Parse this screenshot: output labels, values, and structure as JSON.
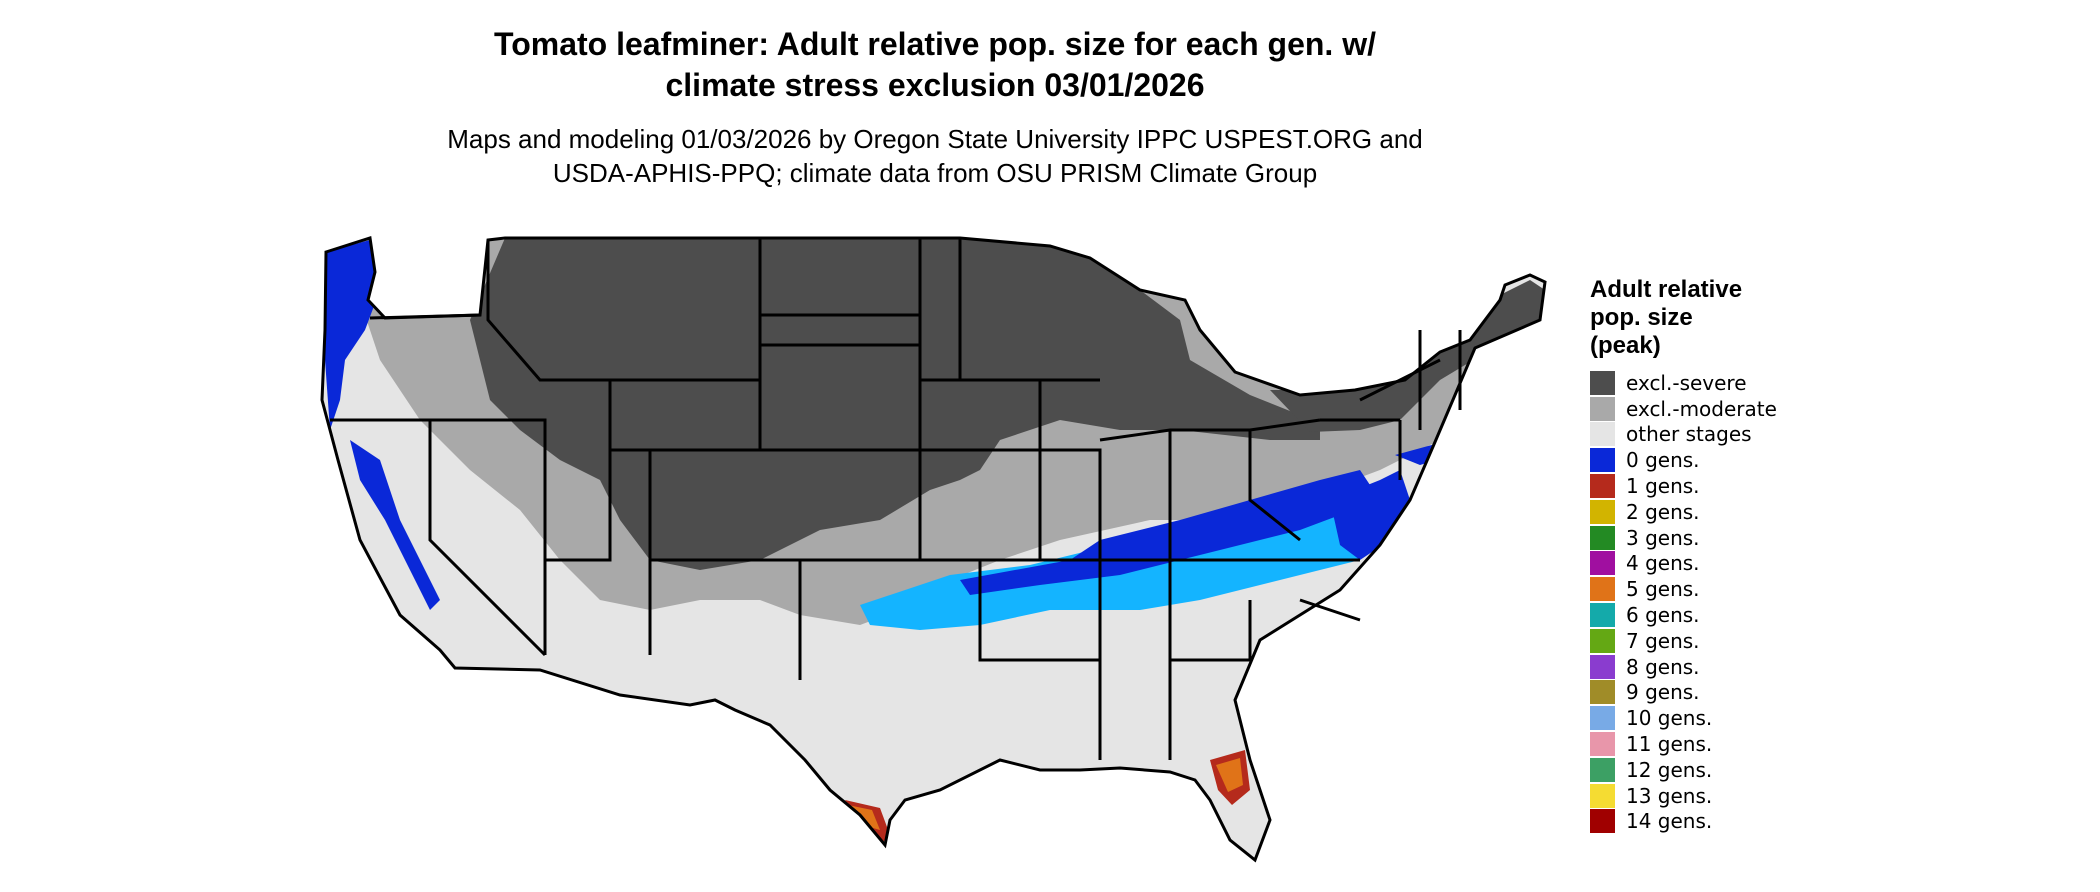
{
  "header": {
    "title_line1": "Tomato leafminer: Adult relative pop. size for each gen. w/",
    "title_line2": "climate stress exclusion 03/01/2026",
    "subtitle_line1": "Maps and modeling 01/03/2026 by Oregon State University IPPC USPEST.ORG and",
    "subtitle_line2": "USDA-APHIS-PPQ; climate data from OSU PRISM Climate Group"
  },
  "legend": {
    "title_line1": "Adult relative",
    "title_line2": "pop. size",
    "title_line3": "(peak)",
    "items": [
      {
        "label": "excl.-severe",
        "color": "#4d4d4d"
      },
      {
        "label": "excl.-moderate",
        "color": "#a9a9a9"
      },
      {
        "label": "other stages",
        "color": "#e5e5e5"
      },
      {
        "label": "0 gens.",
        "color": "#0a28d8"
      },
      {
        "label": "1 gens.",
        "color": "#b52a1c"
      },
      {
        "label": "2 gens.",
        "color": "#d2b400"
      },
      {
        "label": "3 gens.",
        "color": "#238a23"
      },
      {
        "label": "4 gens.",
        "color": "#a00fa0"
      },
      {
        "label": "5 gens.",
        "color": "#e07318"
      },
      {
        "label": "6 gens.",
        "color": "#14aaaa"
      },
      {
        "label": "7 gens.",
        "color": "#64a814"
      },
      {
        "label": "8 gens.",
        "color": "#8a3ccf"
      },
      {
        "label": "9 gens.",
        "color": "#a08c28"
      },
      {
        "label": "10 gens.",
        "color": "#78aae6"
      },
      {
        "label": "11 gens.",
        "color": "#e896aa"
      },
      {
        "label": "12 gens.",
        "color": "#3ca064"
      },
      {
        "label": "13 gens.",
        "color": "#f5dc32"
      },
      {
        "label": "14 gens.",
        "color": "#a00000"
      }
    ]
  },
  "map_colors": {
    "severe": "#4d4d4d",
    "moderate": "#a9a9a9",
    "other": "#e5e5e5",
    "gen0": "#0a28d8",
    "light_blue": "#14b4ff",
    "gen1": "#b52a1c",
    "gen5": "#e07318",
    "border": "#000000"
  }
}
